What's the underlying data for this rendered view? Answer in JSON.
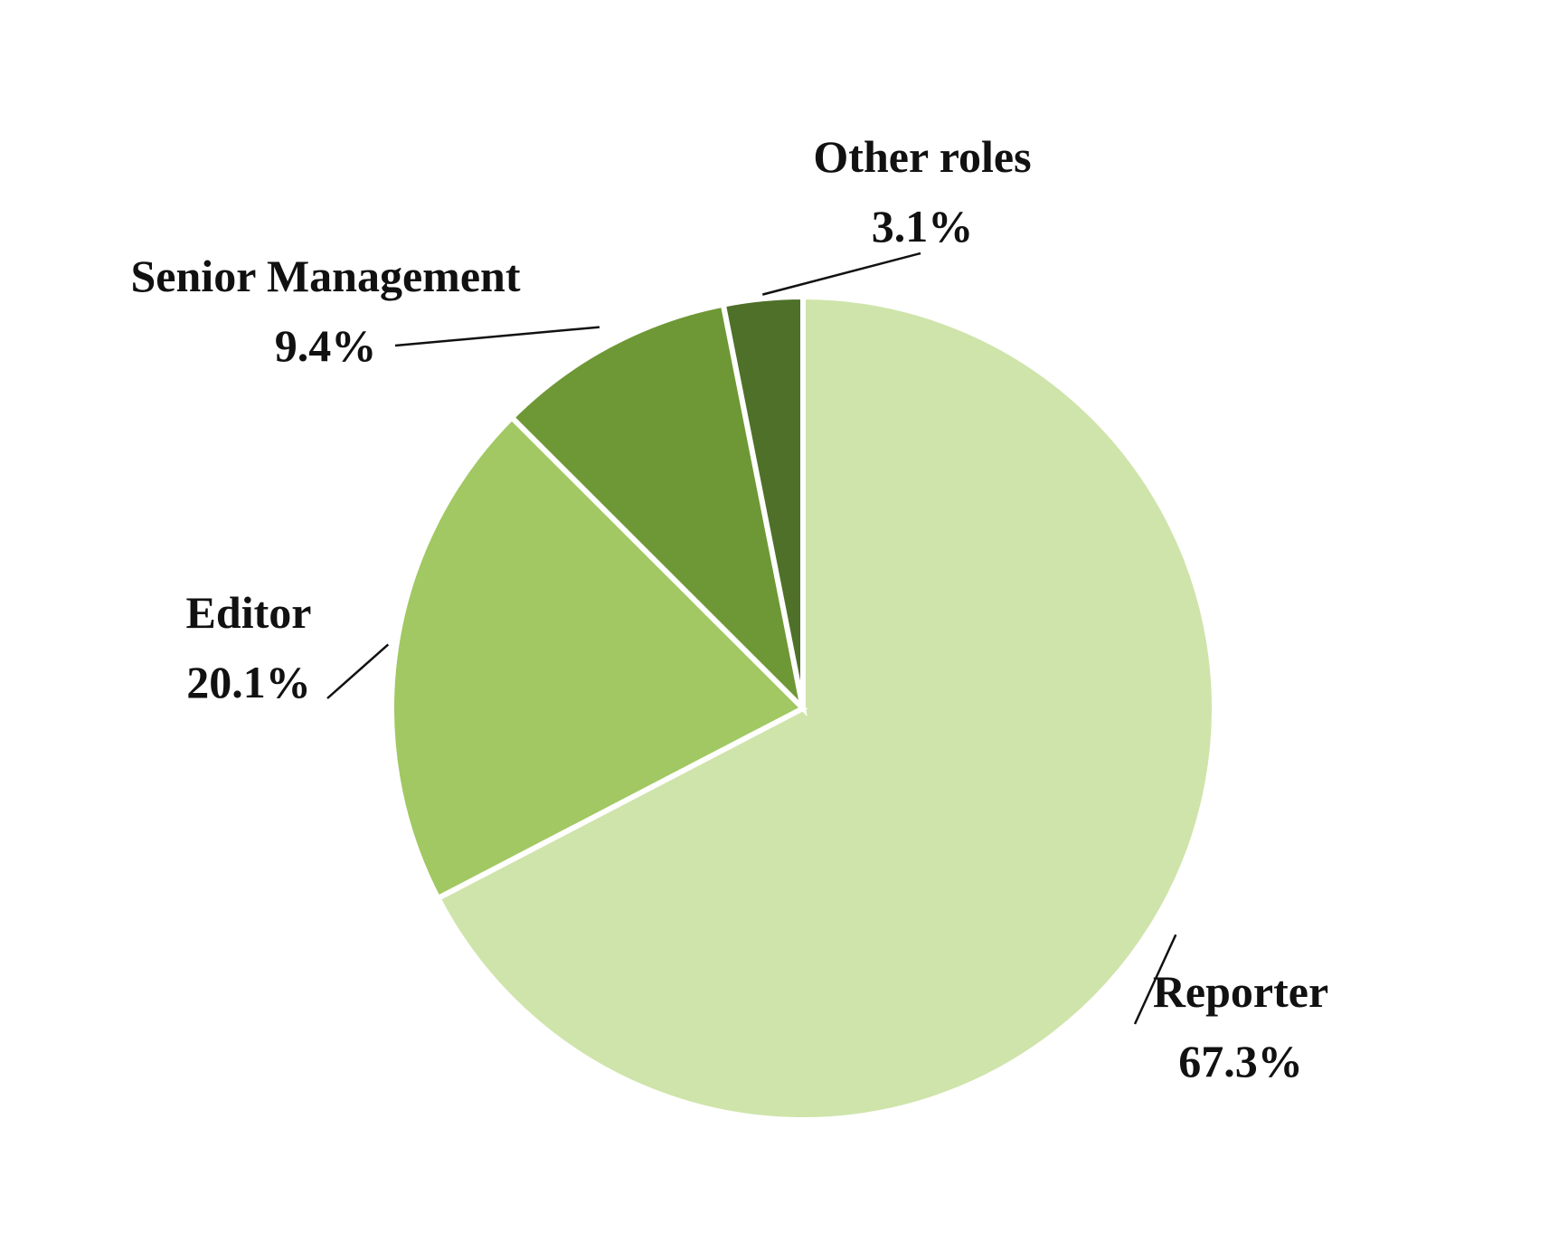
{
  "chart_data": {
    "type": "pie",
    "title": "",
    "start": "top",
    "direction": "clockwise",
    "slices": [
      {
        "label": "Reporter",
        "value": 67.3,
        "value_label": "67.3%",
        "color": "#cfe4aa"
      },
      {
        "label": "Editor",
        "value": 20.1,
        "value_label": "20.1%",
        "color": "#a1c862"
      },
      {
        "label": "Senior Management",
        "value": 9.4,
        "value_label": "9.4%",
        "color": "#6e9835"
      },
      {
        "label": "Other roles",
        "value": 3.1,
        "value_label": "3.1%",
        "color": "#4f7029"
      }
    ]
  }
}
